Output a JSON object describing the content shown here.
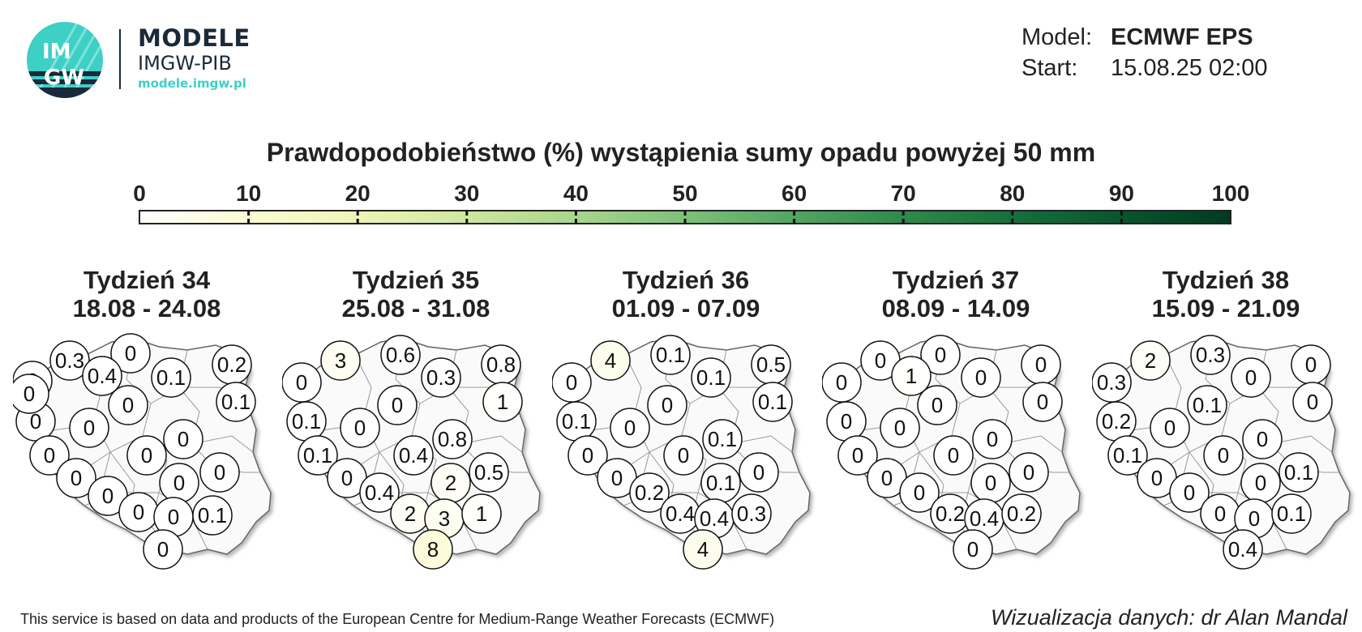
{
  "brand": {
    "logo_text_top": "IM",
    "logo_text_bottom": "GW",
    "title": "MODELE",
    "subtitle": "IMGW-PIB",
    "url": "modele.imgw.pl",
    "accent_color": "#3ecfc5",
    "dark_color": "#1b2a3a"
  },
  "meta": {
    "model_label": "Model:",
    "model_value": "ECMWF EPS",
    "start_label": "Start:",
    "start_value": "15.08.25 02:00"
  },
  "title": "Prawdopodobieństwo (%) wystąpienia sumy opadu powyżej 50 mm",
  "colorbar": {
    "ticks": [
      "0",
      "10",
      "20",
      "30",
      "40",
      "50",
      "60",
      "70",
      "80",
      "90",
      "100"
    ],
    "colors": [
      "#ffffff",
      "#fbfbd2",
      "#eef4b6",
      "#cfe79e",
      "#a9d58b",
      "#7ec07a",
      "#52a562",
      "#2f8a4c",
      "#16703b",
      "#08552d",
      "#003a22"
    ]
  },
  "weeks": [
    {
      "label": "Tydzień 34",
      "range": "18.08 - 24.08",
      "values": [
        "0.3",
        "0",
        "0.2",
        "0",
        "0.1",
        "0.1",
        "0",
        "0",
        "0",
        "0",
        "0",
        "0",
        "0",
        "0",
        "0",
        "0",
        "0",
        "0",
        "0.1",
        "0",
        "0",
        "0.4"
      ]
    },
    {
      "label": "Tydzień 35",
      "range": "25.08 - 31.08",
      "values": [
        "3",
        "0.6",
        "0.8",
        "0",
        "0.3",
        "1",
        "0",
        "0.1",
        "0",
        "0.8",
        "0.1",
        "0.4",
        "2",
        "0.5",
        "0",
        "0.4",
        "2",
        "3",
        "1",
        "8"
      ]
    },
    {
      "label": "Tydzień 36",
      "range": "01.09 - 07.09",
      "values": [
        "4",
        "0.1",
        "0.5",
        "0",
        "0.1",
        "0.1",
        "0",
        "0.1",
        "0",
        "0.1",
        "0",
        "0",
        "0.1",
        "0",
        "0",
        "0.2",
        "0.4",
        "0.4",
        "0.3",
        "4"
      ]
    },
    {
      "label": "Tydzień 37",
      "range": "08.09 - 14.09",
      "values": [
        "0",
        "0",
        "0",
        "0",
        "0",
        "0",
        "0",
        "0",
        "0",
        "0",
        "0",
        "0",
        "0",
        "0",
        "0",
        "0",
        "0.2",
        "0.4",
        "0.2",
        "0",
        "1"
      ]
    },
    {
      "label": "Tydzień 38",
      "range": "15.09 - 21.09",
      "values": [
        "2",
        "0.3",
        "0",
        "0.3",
        "0",
        "0",
        "0.1",
        "0.2",
        "0",
        "0",
        "0.1",
        "0",
        "0",
        "0.1",
        "0",
        "0",
        "0",
        "0",
        "0.1",
        "0.4"
      ]
    }
  ],
  "footer": {
    "left": "This service is based on data and products of the European Centre for Medium-Range Weather Forecasts (ECMWF)",
    "right": "Wizualizacja danych: dr Alan Mandal"
  }
}
